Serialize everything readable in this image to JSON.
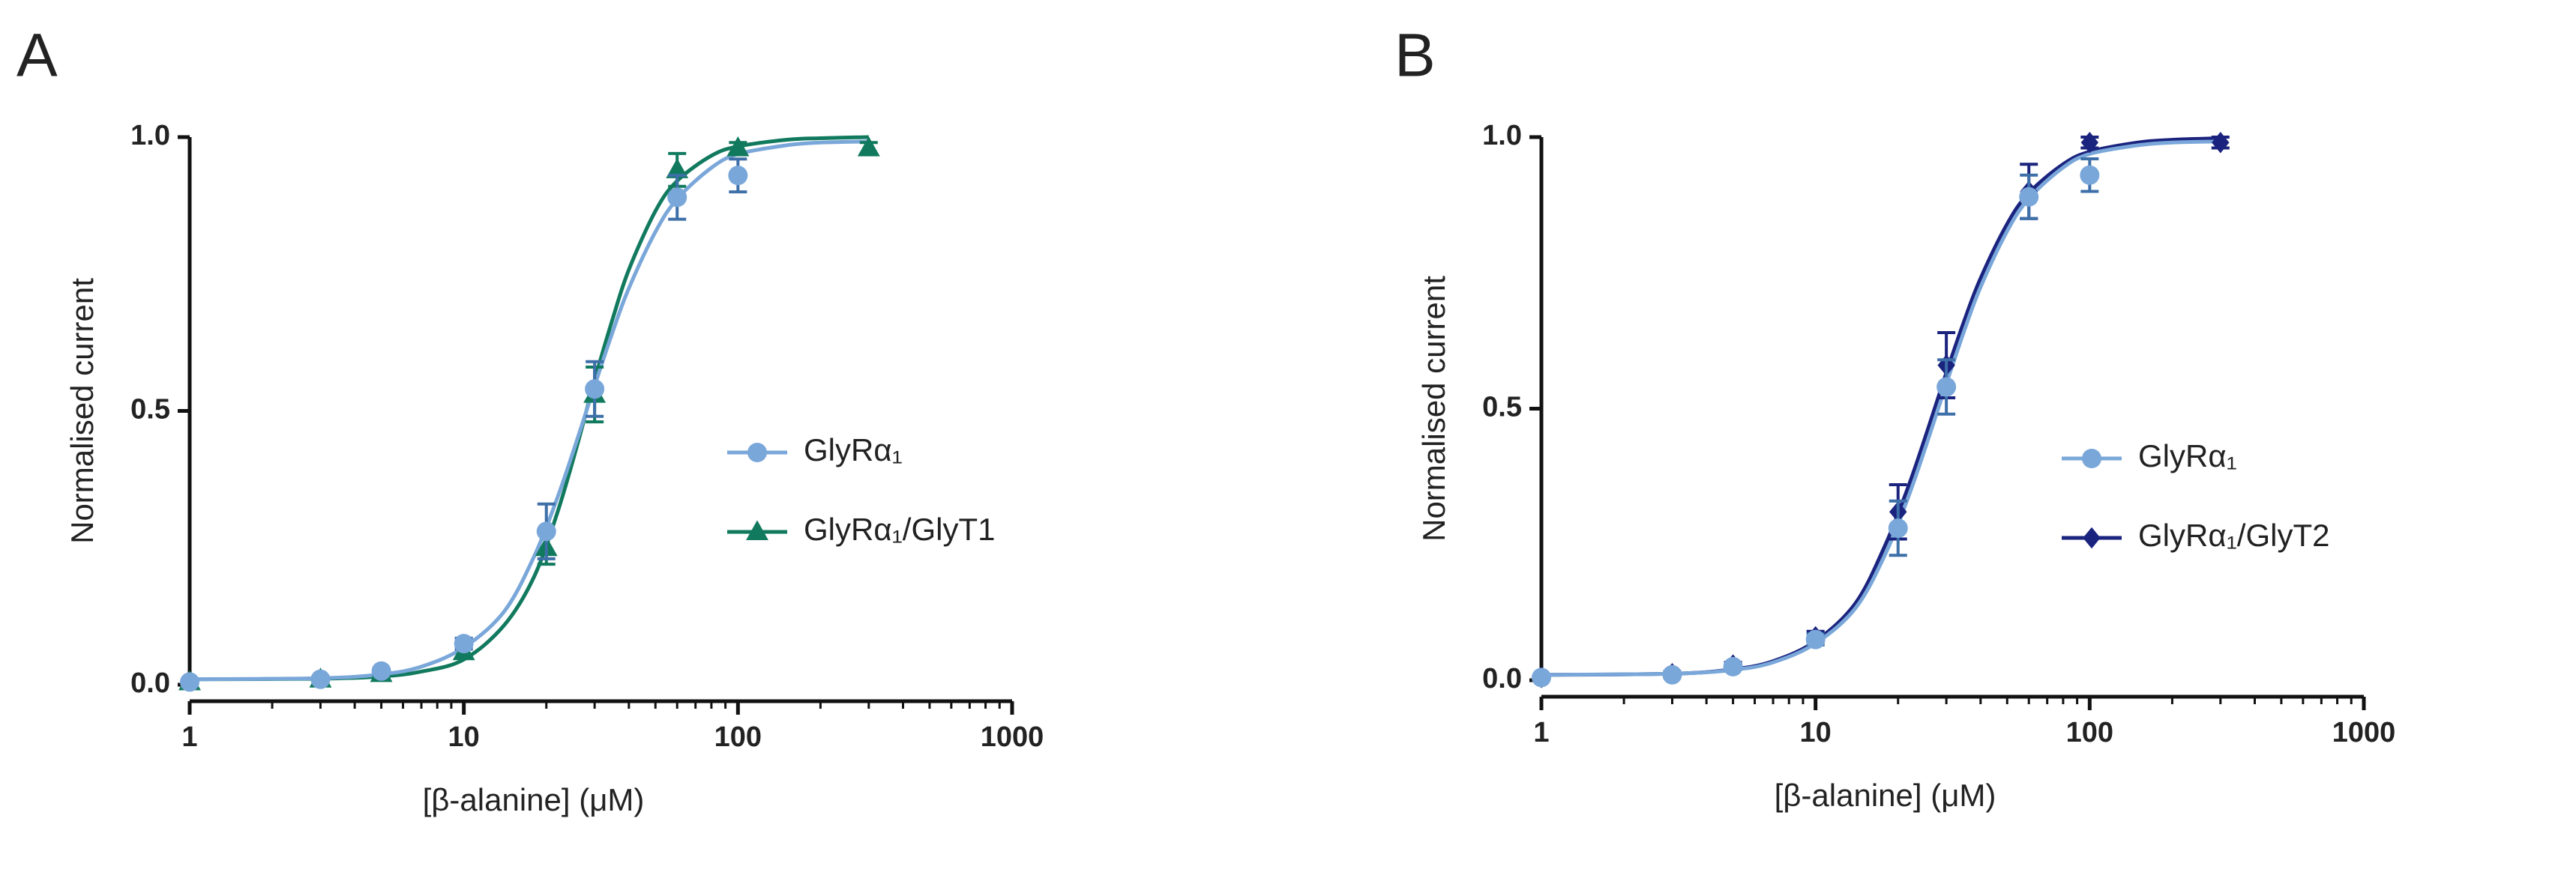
{
  "chart_data": [
    {
      "type": "scatter",
      "panel": "A",
      "xlabel": "[β-alanine] (μM)",
      "ylabel": "Normalised current",
      "xscale": "log",
      "xlim": [
        1,
        1000
      ],
      "xticks": [
        1,
        10,
        100,
        1000
      ],
      "xticks_minor": [
        2,
        3,
        4,
        5,
        6,
        7,
        8,
        9,
        20,
        30,
        40,
        50,
        60,
        70,
        80,
        90,
        200,
        300,
        400,
        500,
        600,
        700,
        800,
        900
      ],
      "ylim": [
        0,
        1
      ],
      "yticks": [
        {
          "value": 0,
          "label": "0.0"
        },
        0.5,
        {
          "value": 1,
          "label": "1.0"
        }
      ],
      "legend": "right",
      "series": [
        {
          "name": "GlyRα₁",
          "color": "#7aa7d9",
          "marker": "circle",
          "x": [
            1,
            3,
            5,
            10,
            20,
            30,
            60,
            100
          ],
          "values": [
            0.005,
            0.01,
            0.025,
            0.075,
            0.28,
            0.54,
            0.89,
            0.93
          ],
          "errors": [
            0.003,
            0.005,
            0.005,
            0.01,
            0.05,
            0.05,
            0.04,
            0.03
          ],
          "fit_x": [
            1,
            3,
            5,
            7,
            10,
            14,
            18,
            22,
            26,
            30,
            35,
            40,
            50,
            60,
            80,
            100,
            150,
            200,
            300
          ],
          "fit_values": [
            0.01,
            0.012,
            0.019,
            0.033,
            0.068,
            0.133,
            0.233,
            0.343,
            0.45,
            0.546,
            0.646,
            0.724,
            0.827,
            0.887,
            0.944,
            0.969,
            0.985,
            0.99,
            0.992
          ]
        },
        {
          "name": "GlyRα₁/GlyT1",
          "color": "#117a5e",
          "marker": "triangle",
          "x": [
            1,
            3,
            5,
            10,
            20,
            30,
            60,
            100,
            300
          ],
          "values": [
            0.005,
            0.01,
            0.02,
            0.06,
            0.25,
            0.53,
            0.94,
            0.98,
            0.98
          ],
          "errors": [
            0.003,
            0.004,
            0.005,
            0.01,
            0.03,
            0.05,
            0.03,
            0.01,
            0.01
          ],
          "fit_x": [
            1,
            3,
            5,
            7,
            10,
            14,
            18,
            22,
            26,
            30,
            35,
            40,
            50,
            60,
            80,
            100,
            150,
            200,
            300
          ],
          "fit_values": [
            0.01,
            0.011,
            0.015,
            0.024,
            0.046,
            0.108,
            0.196,
            0.316,
            0.44,
            0.556,
            0.67,
            0.758,
            0.865,
            0.92,
            0.966,
            0.983,
            0.995,
            0.998,
            1.0
          ]
        }
      ]
    },
    {
      "type": "scatter",
      "panel": "B",
      "xlabel": "[β-alanine] (μM)",
      "ylabel": "Normalised current",
      "xscale": "log",
      "xlim": [
        1,
        1000
      ],
      "xticks": [
        1,
        10,
        100,
        1000
      ],
      "xticks_minor": [
        2,
        3,
        4,
        5,
        6,
        7,
        8,
        9,
        20,
        30,
        40,
        50,
        60,
        70,
        80,
        90,
        200,
        300,
        400,
        500,
        600,
        700,
        800,
        900
      ],
      "ylim": [
        0,
        1
      ],
      "yticks": [
        {
          "value": 0,
          "label": "0.0"
        },
        0.5,
        {
          "value": 1,
          "label": "1.0"
        }
      ],
      "legend": "right",
      "series": [
        {
          "name": "GlyRα₁",
          "color": "#7aa7d9",
          "marker": "circle",
          "x": [
            1,
            3,
            5,
            10,
            20,
            30,
            60,
            100
          ],
          "values": [
            0.005,
            0.01,
            0.025,
            0.075,
            0.28,
            0.54,
            0.89,
            0.93
          ],
          "errors": [
            0.003,
            0.005,
            0.005,
            0.01,
            0.05,
            0.05,
            0.04,
            0.03
          ],
          "fit_x": [
            1,
            3,
            5,
            7,
            10,
            14,
            18,
            22,
            26,
            30,
            35,
            40,
            50,
            60,
            80,
            100,
            150,
            200,
            300
          ],
          "fit_values": [
            0.01,
            0.012,
            0.019,
            0.033,
            0.068,
            0.133,
            0.233,
            0.343,
            0.45,
            0.546,
            0.646,
            0.724,
            0.827,
            0.887,
            0.944,
            0.969,
            0.985,
            0.99,
            0.992
          ]
        },
        {
          "name": "GlyRα₁/GlyT2",
          "color": "#1a237e",
          "marker": "diamond",
          "x": [
            1,
            3,
            5,
            10,
            20,
            30,
            60,
            100,
            300
          ],
          "values": [
            0.005,
            0.012,
            0.028,
            0.08,
            0.31,
            0.58,
            0.9,
            0.99,
            0.99
          ],
          "errors": [
            0.003,
            0.004,
            0.005,
            0.01,
            0.05,
            0.06,
            0.05,
            0.01,
            0.01
          ],
          "fit_x": [
            1,
            3,
            5,
            7,
            10,
            14,
            18,
            22,
            26,
            30,
            35,
            40,
            50,
            60,
            80,
            100,
            150,
            200,
            300
          ],
          "fit_values": [
            0.01,
            0.012,
            0.02,
            0.035,
            0.072,
            0.142,
            0.25,
            0.362,
            0.47,
            0.566,
            0.664,
            0.74,
            0.84,
            0.897,
            0.95,
            0.973,
            0.99,
            0.995,
            0.998
          ]
        }
      ]
    }
  ]
}
